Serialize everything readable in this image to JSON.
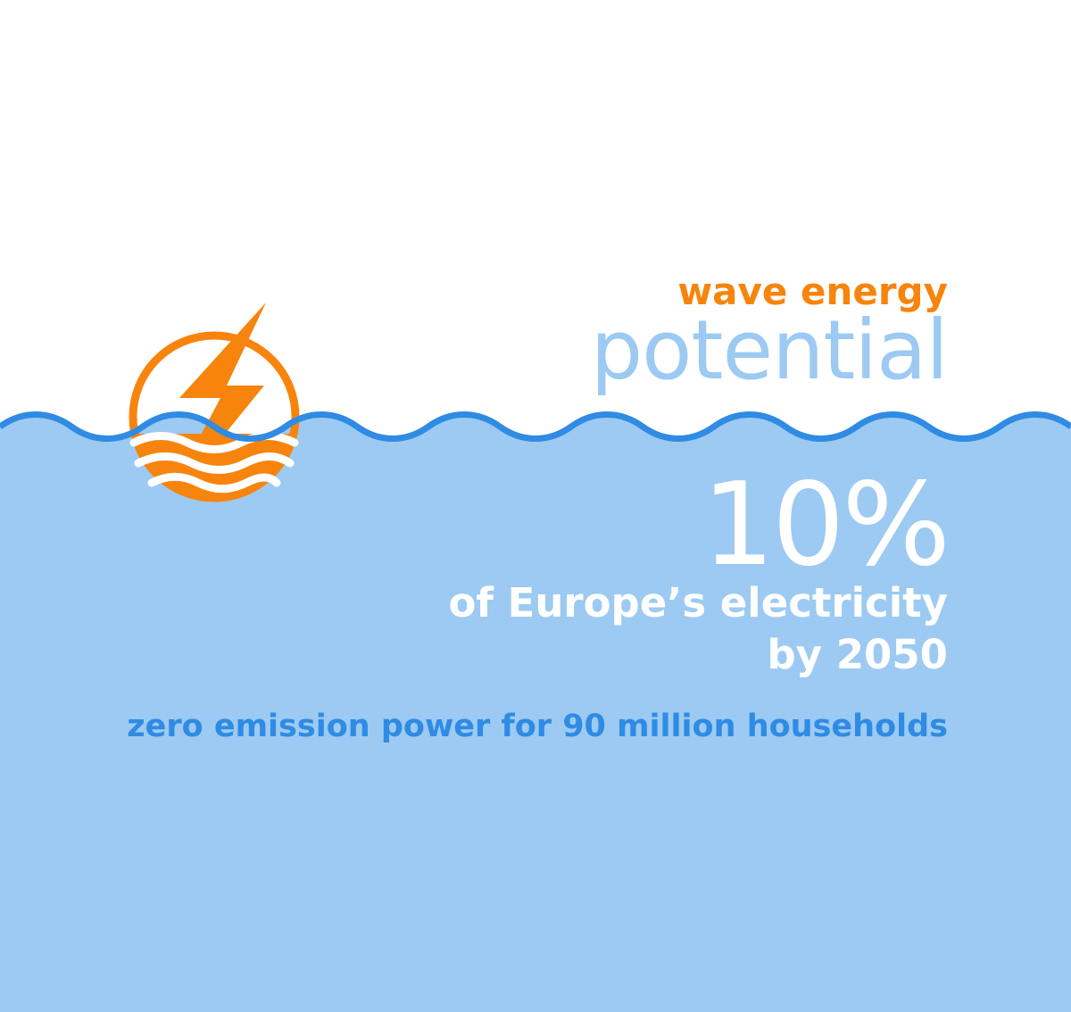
{
  "colors": {
    "background": "#ffffff",
    "water": "#9ccaf2",
    "wave_line": "#2f8be3",
    "accent_orange": "#f7840d",
    "light_blue_text": "#9ccaf2",
    "white_text": "#ffffff",
    "blue_text": "#2f8be3"
  },
  "icons": {
    "logo": "lightning-bolt-over-waves-icon"
  },
  "heading": {
    "line1": "wave energy",
    "line2": "potential"
  },
  "stat": {
    "value": "10%",
    "line1": "of Europe’s electricity",
    "line2": "by 2050"
  },
  "tagline": "zero emission power for 90 million households"
}
